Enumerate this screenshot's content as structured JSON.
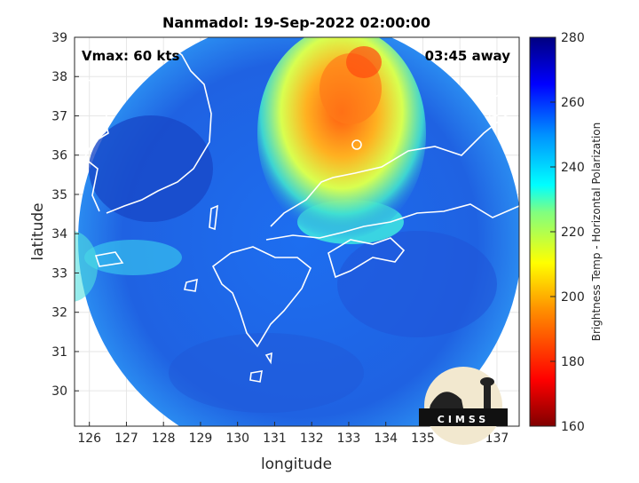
{
  "title": "Nanmadol: 19-Sep-2022 02:00:00",
  "vmax_label": "Vmax: 60 kts",
  "time_label": "03:45 away",
  "xlabel": "longitude",
  "ylabel": "latitude",
  "x_ticks": [
    "126",
    "127",
    "128",
    "129",
    "130",
    "131",
    "132",
    "133",
    "134",
    "135",
    "136",
    "137"
  ],
  "y_ticks": [
    "30",
    "31",
    "32",
    "33",
    "34",
    "35",
    "36",
    "37",
    "38",
    "39"
  ],
  "x_range": [
    125.6,
    137.6
  ],
  "y_range": [
    29.1,
    39.0
  ],
  "colorbar": {
    "label": "Brightness Temp - Horizontal Polarization",
    "ticks": [
      "280",
      "260",
      "240",
      "220",
      "200",
      "180",
      "160"
    ],
    "range": [
      160,
      280
    ]
  },
  "logo": {
    "text": "CIMSS"
  },
  "colors": {
    "swath_base": "#1f63e6",
    "cold_core": "#f08020",
    "background": "#ffffff",
    "coastline": "#ffffff"
  }
}
